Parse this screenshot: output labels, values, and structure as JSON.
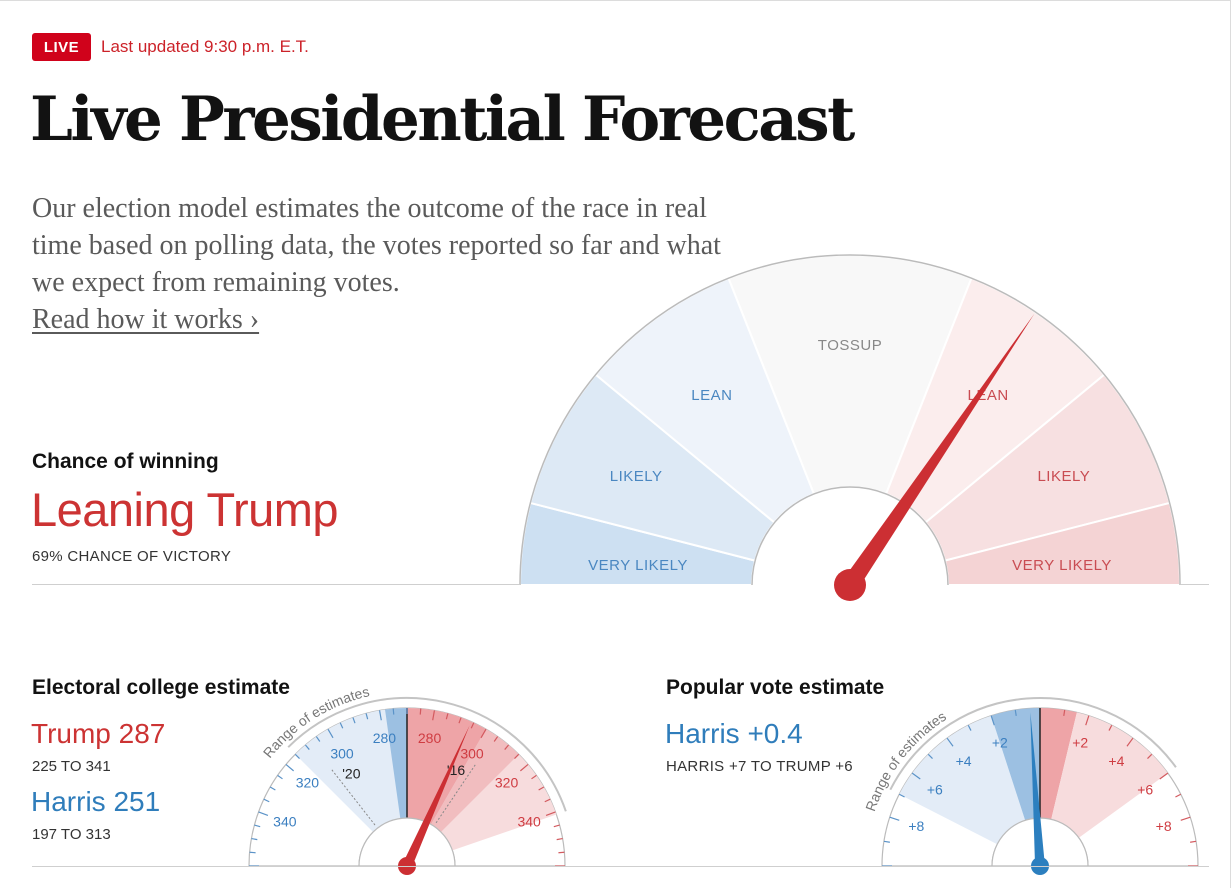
{
  "header": {
    "live_badge": "LIVE",
    "updated": "Last updated 9:30 p.m. E.T.",
    "title": "Live Presidential Forecast",
    "lede": "Our election model estimates the outcome of the race in real time based on polling data, the votes reported so far and what we expect from remaining votes.",
    "read_more": "Read how it works ›"
  },
  "chance": {
    "label": "Chance of winning",
    "value": "Leaning Trump",
    "sub": "69% CHANCE OF VICTORY"
  },
  "electoral": {
    "label": "Electoral college estimate",
    "trump": "Trump 287",
    "trump_range": "225 TO 341",
    "harris": "Harris 251",
    "harris_range": "197 TO 313"
  },
  "popular": {
    "label": "Popular vote estimate",
    "value": "Harris +0.4",
    "range": "HARRIS +7 TO TRUMP +6"
  },
  "colors": {
    "rep": "#cc2f33",
    "dem": "#2c7fbf"
  },
  "chart_data": [
    {
      "type": "gauge",
      "title": "Chance of winning",
      "needle_value": 0.69,
      "categories": [
        "VERY LIKELY",
        "LIKELY",
        "LEAN",
        "TOSSUP",
        "LEAN",
        "LIKELY",
        "VERY LIKELY"
      ],
      "category_bounds": [
        0,
        0.08,
        0.22,
        0.38,
        0.62,
        0.78,
        0.92,
        1.0
      ],
      "category_sides": [
        "dem",
        "dem",
        "dem",
        "toss",
        "rep",
        "rep",
        "rep"
      ]
    },
    {
      "type": "gauge",
      "title": "Electoral college estimate",
      "scale_left_value": 360,
      "scale_right_value": 360,
      "center_value": 270,
      "needle_value": 287,
      "tick_labels": [
        "340",
        "320",
        "300",
        "280",
        "280",
        "300",
        "320",
        "340"
      ],
      "annotations": [
        "'20",
        "'16"
      ],
      "range_label": "Range of estimates",
      "range": [
        225,
        341
      ],
      "series": [
        {
          "name": "Trump",
          "value": 287,
          "range": [
            225,
            341
          ]
        },
        {
          "name": "Harris",
          "value": 251,
          "range": [
            197,
            313
          ]
        }
      ]
    },
    {
      "type": "gauge",
      "title": "Popular vote estimate",
      "needle_value": -0.4,
      "scale_range": [
        -10,
        10
      ],
      "tick_labels": [
        "+8",
        "+6",
        "+4",
        "+2",
        "+2",
        "+4",
        "+6",
        "+8"
      ],
      "range_label": "Range of estimates",
      "range": [
        -7,
        6
      ]
    }
  ]
}
